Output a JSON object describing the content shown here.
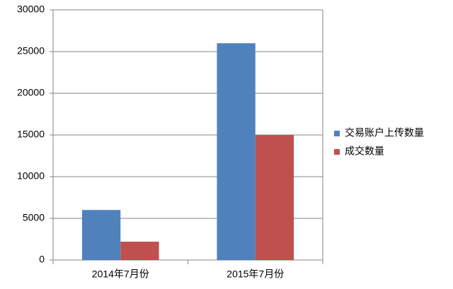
{
  "chart_data": {
    "type": "bar",
    "categories": [
      "2014年7月份",
      "2015年7月份"
    ],
    "series": [
      {
        "name": "交易账户上传数量",
        "color": "#4f81bd",
        "values": [
          6000,
          26000
        ]
      },
      {
        "name": "成交数量",
        "color": "#c0504d",
        "values": [
          2200,
          15000
        ]
      }
    ],
    "ylim": [
      0,
      30000
    ],
    "yticks": [
      0,
      5000,
      10000,
      15000,
      20000,
      25000,
      30000
    ],
    "grid": true,
    "legend": "right"
  }
}
